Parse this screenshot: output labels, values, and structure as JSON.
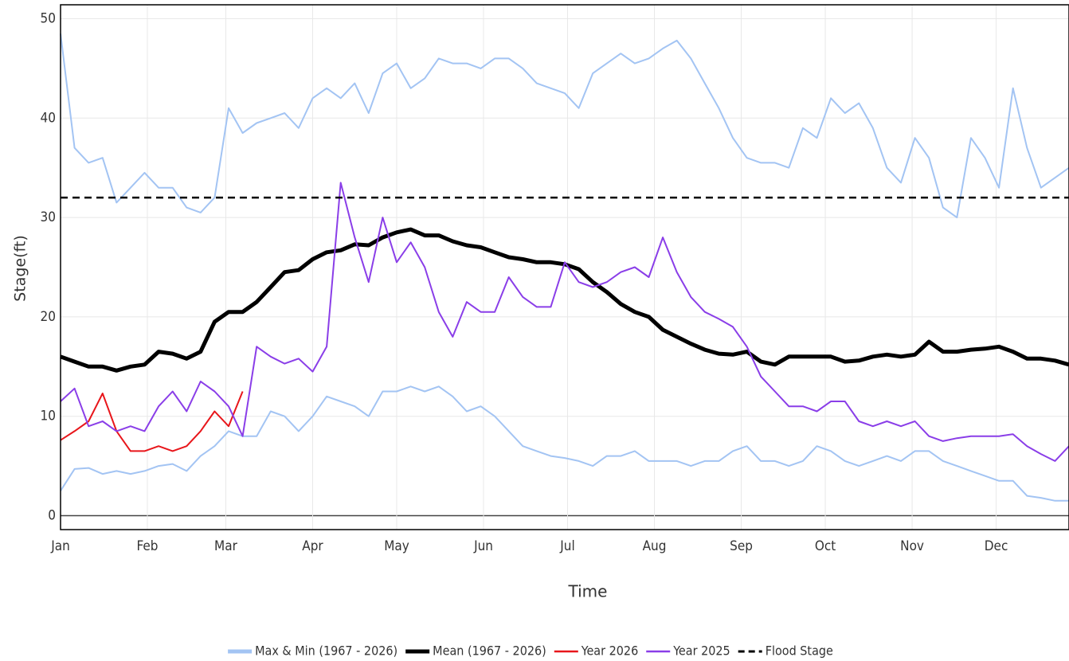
{
  "chart_data": {
    "type": "line",
    "x_label": "Time",
    "y_label": "Stage(ft)",
    "x": [
      1,
      6,
      11,
      16,
      21,
      26,
      31,
      36,
      41,
      46,
      51,
      56,
      61,
      66,
      71,
      76,
      81,
      86,
      91,
      96,
      101,
      106,
      111,
      116,
      121,
      126,
      131,
      136,
      141,
      146,
      151,
      156,
      161,
      166,
      171,
      176,
      181,
      186,
      191,
      196,
      201,
      206,
      211,
      216,
      221,
      226,
      231,
      236,
      241,
      246,
      251,
      256,
      261,
      266,
      271,
      276,
      281,
      286,
      291,
      296,
      301,
      306,
      311,
      316,
      321,
      326,
      331,
      336,
      341,
      346,
      351,
      356,
      361
    ],
    "xlim": [
      1,
      361
    ],
    "xticks": [
      {
        "value": 1,
        "label": "Jan"
      },
      {
        "value": 32,
        "label": "Feb"
      },
      {
        "value": 60,
        "label": "Mar"
      },
      {
        "value": 91,
        "label": "Apr"
      },
      {
        "value": 121,
        "label": "May"
      },
      {
        "value": 152,
        "label": "Jun"
      },
      {
        "value": 182,
        "label": "Jul"
      },
      {
        "value": 213,
        "label": "Aug"
      },
      {
        "value": 244,
        "label": "Sep"
      },
      {
        "value": 274,
        "label": "Oct"
      },
      {
        "value": 305,
        "label": "Nov"
      },
      {
        "value": 335,
        "label": "Dec"
      }
    ],
    "ylim": [
      -1.4,
      51.4
    ],
    "yticks": [
      0,
      10,
      20,
      30,
      40,
      50
    ],
    "grid": true,
    "series": [
      {
        "name": "Max & Min (1967 - 2026)",
        "color": "#a3c4f3",
        "width": 2,
        "values": [
          48.5,
          37,
          35.5,
          36,
          31.5,
          33,
          34.5,
          33,
          33,
          31,
          30.5,
          32,
          41,
          38.5,
          39.5,
          40,
          40.5,
          39,
          42,
          43,
          42,
          43.5,
          40.5,
          44.5,
          45.5,
          43,
          44,
          46,
          45.5,
          45.5,
          45,
          46,
          46,
          45,
          43.5,
          43,
          42.5,
          41,
          44.5,
          45.5,
          46.5,
          45.5,
          46,
          47,
          47.8,
          46,
          43.5,
          41,
          38,
          36,
          35.5,
          35.5,
          35,
          39,
          38,
          42,
          40.5,
          41.5,
          39,
          35,
          33.5,
          38,
          36,
          31,
          30,
          38,
          36,
          33,
          43,
          37,
          33,
          34,
          35
        ],
        "values_min": [
          2.5,
          4.7,
          4.8,
          4.2,
          4.5,
          4.2,
          4.5,
          5,
          5.2,
          4.5,
          6,
          7,
          8.5,
          8,
          8,
          10.5,
          10,
          8.5,
          10,
          12,
          11.5,
          11,
          10,
          12.5,
          12.5,
          13,
          12.5,
          13,
          12,
          10.5,
          11,
          10,
          8.5,
          7,
          6.5,
          6,
          5.8,
          5.5,
          5,
          6,
          6,
          6.5,
          5.5,
          5.5,
          5.5,
          5,
          5.5,
          5.5,
          6.5,
          7,
          5.5,
          5.5,
          5,
          5.5,
          7,
          6.5,
          5.5,
          5,
          5.5,
          6,
          5.5,
          6.5,
          6.5,
          5.5,
          5,
          4.5,
          4,
          3.5,
          3.5,
          2,
          1.8,
          1.5,
          1.5
        ]
      },
      {
        "name": "Mean (1967 - 2026)",
        "color": "#000000",
        "width": 5,
        "values": [
          16,
          15.5,
          15,
          15,
          14.6,
          15,
          15.2,
          16.5,
          16.3,
          15.8,
          16.5,
          19.5,
          20.5,
          20.5,
          21.5,
          23,
          24.5,
          24.7,
          25.8,
          26.5,
          26.7,
          27.3,
          27.2,
          28,
          28.5,
          28.8,
          28.2,
          28.2,
          27.6,
          27.2,
          27,
          26.5,
          26,
          25.8,
          25.5,
          25.5,
          25.3,
          24.8,
          23.5,
          22.5,
          21.3,
          20.5,
          20,
          18.7,
          18,
          17.3,
          16.7,
          16.3,
          16.2,
          16.5,
          15.5,
          15.2,
          16,
          16,
          16,
          16,
          15.5,
          15.6,
          16,
          16.2,
          16,
          16.2,
          17.5,
          16.5,
          16.5,
          16.7,
          16.8,
          17,
          16.5,
          15.8,
          15.8,
          15.6,
          15.2
        ]
      },
      {
        "name": "Year 2026",
        "color": "#e8161b",
        "width": 2,
        "values": [
          7.6,
          8.5,
          9.5,
          12.3,
          8.5,
          6.5,
          6.5,
          7,
          6.5,
          7,
          8.5,
          10.5,
          9,
          12.5,
          null,
          null,
          null,
          null,
          null,
          null,
          null,
          null,
          null,
          null,
          null,
          null,
          null,
          null,
          null,
          null,
          null,
          null,
          null,
          null,
          null,
          null,
          null,
          null,
          null,
          null,
          null,
          null,
          null,
          null,
          null,
          null,
          null,
          null,
          null,
          null,
          null,
          null,
          null,
          null,
          null,
          null,
          null,
          null,
          null,
          null,
          null,
          null,
          null,
          null,
          null,
          null,
          null,
          null,
          null,
          null,
          null,
          null,
          null
        ]
      },
      {
        "name": "Year 2025",
        "color": "#8a3ee8",
        "width": 2,
        "values": [
          11.5,
          12.8,
          9,
          9.5,
          8.5,
          9,
          8.5,
          11,
          12.5,
          10.5,
          13.5,
          12.5,
          11,
          8,
          17,
          16,
          15.3,
          15.8,
          14.5,
          17,
          33.5,
          28,
          23.5,
          30,
          25.5,
          27.5,
          25,
          20.5,
          18,
          21.5,
          20.5,
          20.5,
          24,
          22,
          21,
          21,
          25.5,
          23.5,
          23,
          23.5,
          24.5,
          25,
          24,
          28,
          24.5,
          22,
          20.5,
          19.8,
          19,
          17,
          14,
          12.5,
          11,
          11,
          10.5,
          11.5,
          11.5,
          9.5,
          9,
          9.5,
          9,
          9.5,
          8,
          7.5,
          7.8,
          8,
          8,
          8,
          8.2,
          7,
          6.2,
          5.5,
          7
        ]
      }
    ],
    "reference_lines": [
      {
        "name": "Flood Stage",
        "value": 32,
        "color": "#000000",
        "dash": "9,6"
      }
    ]
  }
}
